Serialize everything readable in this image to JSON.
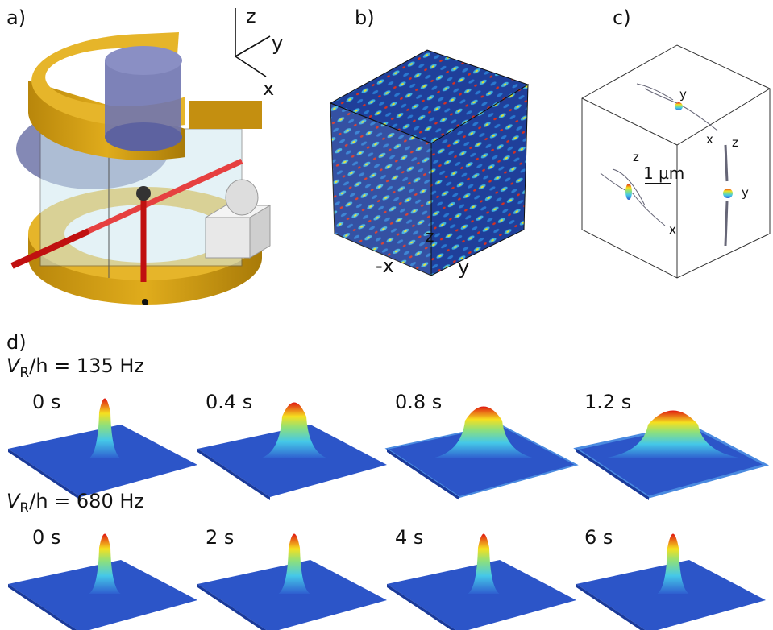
{
  "panel_a": {
    "label": "a)",
    "axes": {
      "z": "z",
      "y": "y",
      "x": "x"
    }
  },
  "panel_b": {
    "label": "b)",
    "axes": {
      "z": "z",
      "x": "-x",
      "y": "y"
    }
  },
  "panel_c": {
    "label": "c)",
    "scale_bar": "1 µm",
    "top_axes": {
      "y": "y",
      "x": "x"
    },
    "left_axes": {
      "z": "z",
      "x": "x"
    },
    "right_axes": {
      "z": "z",
      "y": "y"
    }
  },
  "panel_d": {
    "label": "d)",
    "rows": [
      {
        "prefix": "V",
        "subscript": "R",
        "suffix": "/h = 135 Hz",
        "times": [
          "0 s",
          "0.4 s",
          "0.8 s",
          "1.2 s"
        ]
      },
      {
        "prefix": "V",
        "subscript": "R",
        "suffix": "/h = 680 Hz",
        "times": [
          "0 s",
          "2 s",
          "4 s",
          "6 s"
        ]
      }
    ]
  }
}
